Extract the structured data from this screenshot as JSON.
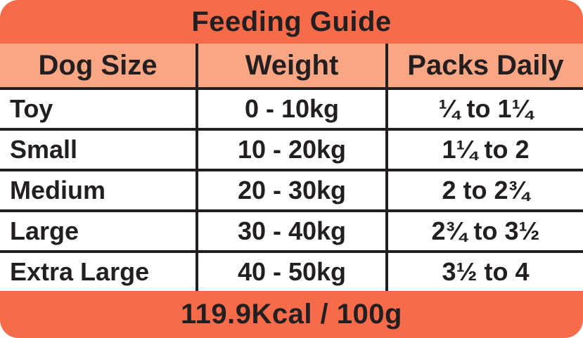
{
  "colors": {
    "band_orange": "#F66C4A",
    "header_salmon": "#F9A685",
    "ink_black": "#231F20",
    "row_white": "#FFFFFF"
  },
  "chart_data": {
    "type": "table",
    "title": "Feeding Guide",
    "columns": [
      "Dog Size",
      "Weight",
      "Packs Daily"
    ],
    "rows": [
      [
        "Toy",
        "0 - 10kg",
        "¼ to 1¼"
      ],
      [
        "Small",
        "10 - 20kg",
        "1¼ to 2"
      ],
      [
        "Medium",
        "20 - 30kg",
        "2 to 2¾"
      ],
      [
        "Large",
        "30 - 40kg",
        "2¾ to 3½"
      ],
      [
        "Extra Large",
        "40 - 50kg",
        "3½ to 4"
      ]
    ],
    "footer": "119.9Kcal / 100g",
    "layout": {
      "grid": "on",
      "divider_color": "#231F20",
      "column_alignments": [
        "left",
        "center",
        "center"
      ]
    }
  }
}
